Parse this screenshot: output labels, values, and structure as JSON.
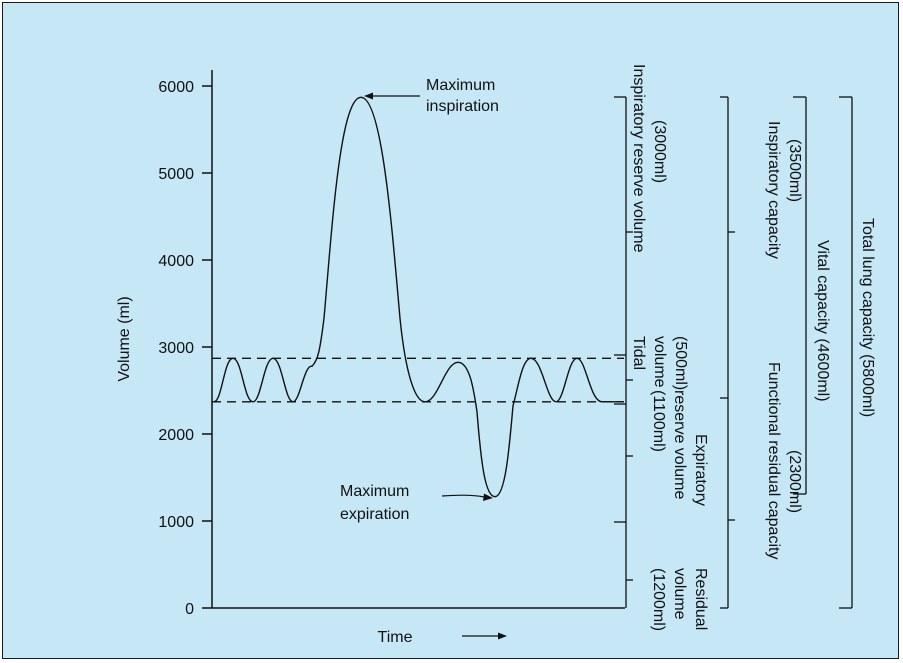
{
  "y_axis": {
    "label": "Volume (ml)",
    "ticks": [
      "0",
      "1000",
      "2000",
      "3000",
      "4000",
      "5000",
      "6000"
    ],
    "range": [
      0,
      6000
    ]
  },
  "x_axis": {
    "label": "Time",
    "arrow": "right-arrow"
  },
  "reference_levels": {
    "tidal_top_ml": 2870,
    "tidal_bottom_ml": 2370,
    "maximum_inspiration_ml": 5870,
    "maximum_expiration_ml": 1280
  },
  "annotations": {
    "max_inspiration": [
      "Maximum",
      "inspiration"
    ],
    "max_expiration": [
      "Maximum",
      "expiration"
    ]
  },
  "volume_labels": [
    {
      "id": "irv",
      "lines": [
        "Inspiratory reserve volume",
        "(3000ml)"
      ]
    },
    {
      "id": "tv",
      "lines": [
        "Tidal",
        "volume",
        "(500ml)"
      ]
    },
    {
      "id": "erv",
      "lines": [
        "Expiratory",
        "reserve volume",
        "(1100ml)"
      ]
    },
    {
      "id": "rv",
      "lines": [
        "Residual",
        "volume",
        "(1200ml)"
      ]
    }
  ],
  "capacity_labels": [
    {
      "id": "ic",
      "lines": [
        "Inspiratory capacity",
        "(3500ml)"
      ]
    },
    {
      "id": "frc",
      "lines": [
        "Functional residual capacity",
        "(2300ml)"
      ]
    },
    {
      "id": "vc",
      "lines": [
        "Vital capacity (4600ml)"
      ]
    },
    {
      "id": "tlc",
      "lines": [
        "Total lung capacity (5800ml)"
      ]
    }
  ],
  "colors": {
    "background": "#c6e7f6",
    "ink": "#111111"
  }
}
